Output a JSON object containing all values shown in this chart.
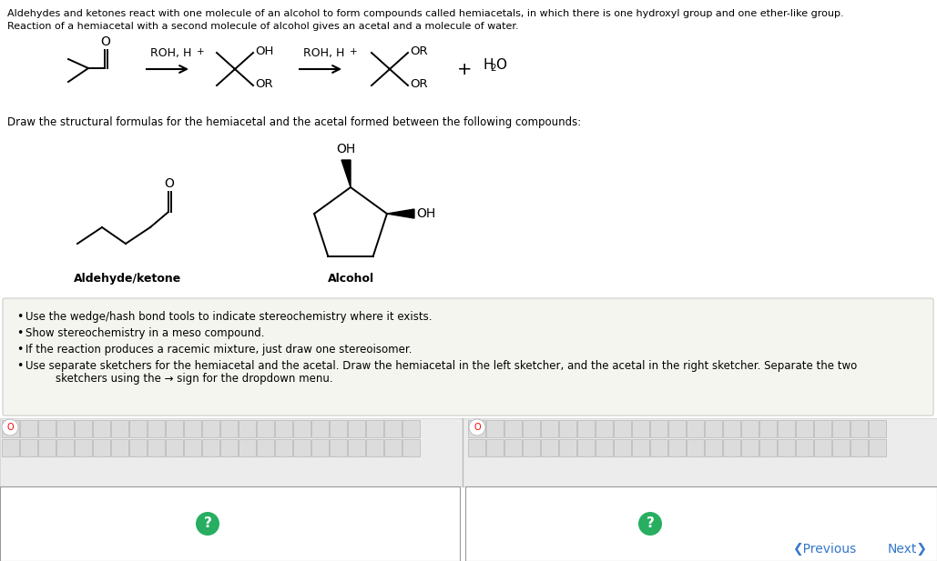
{
  "background_color": "#ffffff",
  "header_text_line1": "Aldehydes and ketones react with one molecule of an alcohol to form compounds called hemiacetals, in which there is one hydroxyl group and one ether-like group.",
  "header_text_line2": "Reaction of a hemiacetal with a second molecule of alcohol gives an acetal and a molecule of water.",
  "draw_question": "Draw the structural formulas for the hemiacetal and the acetal formed between the following compounds:",
  "label_aldehyde": "Aldehyde/ketone",
  "label_alcohol": "Alcohol",
  "bullet1": "Use the wedge/hash bond tools to indicate stereochemistry where it exists.",
  "bullet2": "Show stereochemistry in a meso compound.",
  "bullet3": "If the reaction produces a racemic mixture, just draw one stereoisomer.",
  "bullet4a": "Use separate sketchers for the hemiacetal and the acetal. Draw the hemiacetal in the left sketcher, and the acetal in the right sketcher. Separate the two",
  "bullet4b": "    sketchers using the → sign for the dropdown menu.",
  "nav_prev": "❮Previous",
  "nav_next": "Next❯",
  "toolbar_bg": "#eeeeee",
  "sketcher_bg": "#ffffff",
  "bullet_box_bg": "#f5f5f0",
  "bullet_box_border": "#cccccc",
  "question_circle_color": "#27ae60",
  "question_circle_text": "?",
  "gray_text": "#555555"
}
